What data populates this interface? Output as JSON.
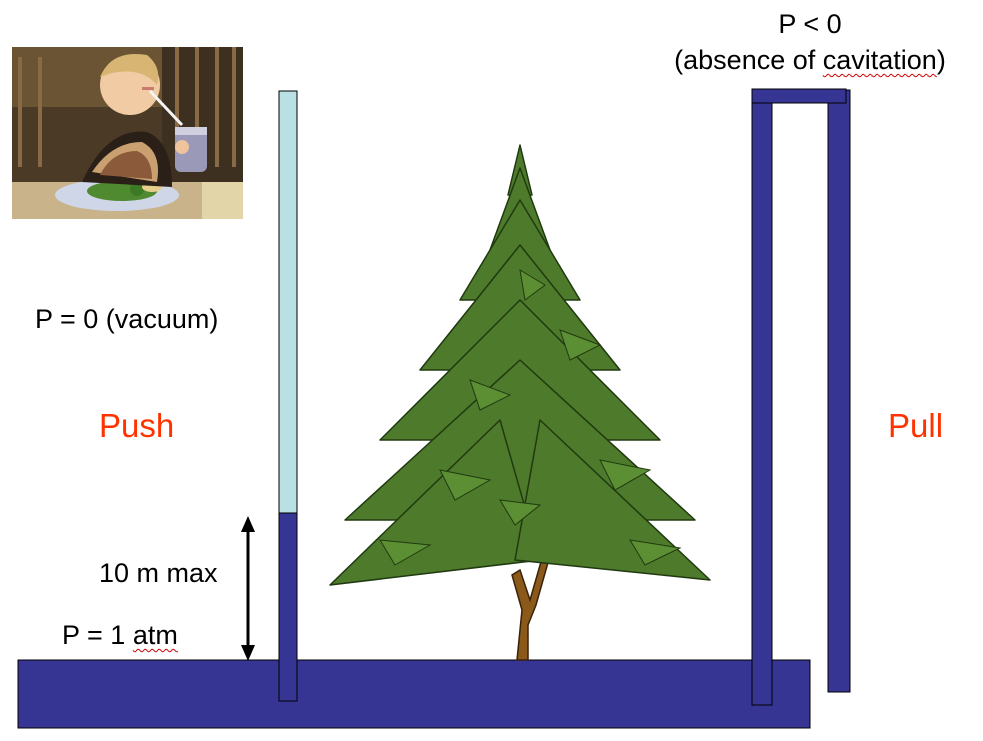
{
  "labels": {
    "p_lt_zero": "P < 0",
    "absence_prefix": "(absence of ",
    "absence_word": "cavitation",
    "absence_suffix": ")",
    "p_vacuum": "P = 0 (vacuum)",
    "push": "Push",
    "pull": "Pull",
    "ten_m_max": "10 m max",
    "p_one_prefix": "P = 1 ",
    "p_one_unit": "atm"
  },
  "colors": {
    "water": "#363594",
    "tube_empty": "#b9e0e2",
    "label_accent": "#ff3300",
    "foliage": "#4e7a2b",
    "trunk": "#8b5a1a"
  },
  "icons": {
    "photo": "child-drinking-through-straw-photo",
    "arrow": "double-headed-arrow-icon",
    "tree": "conifer-tree-icon"
  }
}
